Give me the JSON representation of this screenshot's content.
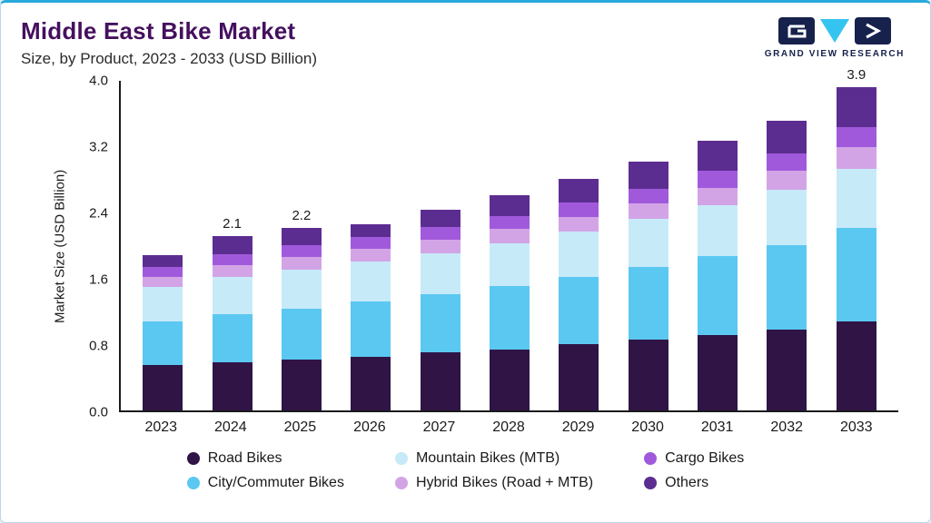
{
  "header": {
    "title": "Middle East Bike Market",
    "subtitle": "Size, by Product, 2023 - 2033 (USD Billion)",
    "logo_text": "GRAND VIEW RESEARCH"
  },
  "chart_data": {
    "type": "bar",
    "stacked": true,
    "title": "Middle East Bike Market Size, by Product, 2023 - 2033 (USD Billion)",
    "xlabel": "",
    "ylabel": "Market Size (USD Billion)",
    "ylim": [
      0,
      4.0
    ],
    "yticks": [
      "0.0",
      "0.8",
      "1.6",
      "2.4",
      "3.2",
      "4.0"
    ],
    "grid": false,
    "legend_position": "bottom",
    "categories": [
      "2023",
      "2024",
      "2025",
      "2026",
      "2027",
      "2028",
      "2029",
      "2030",
      "2031",
      "2032",
      "2033"
    ],
    "series": [
      {
        "name": "Road Bikes",
        "color": "#301446",
        "values": [
          0.55,
          0.58,
          0.61,
          0.65,
          0.7,
          0.74,
          0.8,
          0.85,
          0.91,
          0.98,
          1.07
        ]
      },
      {
        "name": "City/Commuter Bikes",
        "color": "#5BC8F1",
        "values": [
          0.52,
          0.58,
          0.62,
          0.67,
          0.7,
          0.76,
          0.81,
          0.88,
          0.95,
          1.02,
          1.13
        ]
      },
      {
        "name": "Mountain Bikes (MTB)",
        "color": "#C7EAF9",
        "values": [
          0.42,
          0.45,
          0.47,
          0.48,
          0.5,
          0.52,
          0.55,
          0.58,
          0.62,
          0.66,
          0.72
        ]
      },
      {
        "name": "Hybrid Bikes (Road + MTB)",
        "color": "#D2A4E6",
        "values": [
          0.12,
          0.14,
          0.15,
          0.15,
          0.16,
          0.17,
          0.18,
          0.19,
          0.21,
          0.23,
          0.26
        ]
      },
      {
        "name": "Cargo Bikes",
        "color": "#A159DB",
        "values": [
          0.12,
          0.14,
          0.14,
          0.14,
          0.15,
          0.16,
          0.17,
          0.18,
          0.2,
          0.21,
          0.24
        ]
      },
      {
        "name": "Others",
        "color": "#5C2D91",
        "values": [
          0.15,
          0.21,
          0.21,
          0.16,
          0.21,
          0.25,
          0.29,
          0.32,
          0.36,
          0.4,
          0.48
        ]
      }
    ],
    "totals": [
      1.88,
      2.1,
      2.2,
      2.25,
      2.42,
      2.6,
      2.8,
      3.0,
      3.25,
      3.5,
      3.9
    ],
    "bar_labels": {
      "2024": "2.1",
      "2025": "2.2",
      "2033": "3.9"
    }
  },
  "legend": {
    "items": [
      {
        "label": "Road Bikes",
        "color": "#301446"
      },
      {
        "label": "Mountain Bikes (MTB)",
        "color": "#C7EAF9"
      },
      {
        "label": "Cargo Bikes",
        "color": "#A159DB"
      },
      {
        "label": "City/Commuter Bikes",
        "color": "#5BC8F1"
      },
      {
        "label": "Hybrid Bikes (Road + MTB)",
        "color": "#D2A4E6"
      },
      {
        "label": "Others",
        "color": "#5C2D91"
      }
    ]
  }
}
